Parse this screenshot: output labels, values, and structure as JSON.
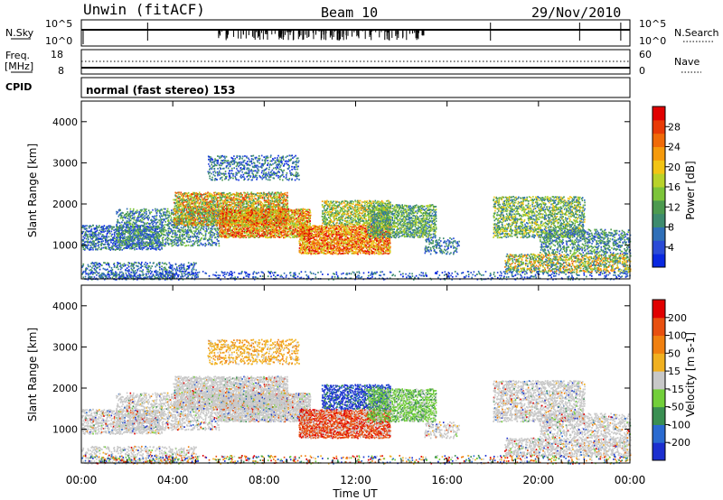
{
  "header": {
    "station": "Unwin (fitACF)",
    "beam": "Beam 10",
    "date": "29/Nov/2010"
  },
  "strip_nsky": {
    "left_label": "N.Sky",
    "left_ticks": [
      "10^5",
      "10^0"
    ],
    "right_label": "N.Search",
    "right_ticks": [
      "10^5",
      "10^0"
    ]
  },
  "strip_freq": {
    "left_label_1": "Freq.",
    "left_label_2": "[MHz]",
    "left_ticks": [
      "18",
      "8"
    ],
    "right_label": "Nave",
    "right_ticks": [
      "60",
      "0"
    ]
  },
  "strip_cpid": {
    "left_label": "CPID",
    "mode_text": "normal (fast stereo) 153"
  },
  "chart_data": [
    {
      "type": "heatmap",
      "panel": "power",
      "ylabel": "Slant Range [km]",
      "yticks": [
        "4000",
        "3000",
        "2000",
        "1000"
      ],
      "ylim": [
        180,
        4500
      ],
      "xlim_hours": [
        0,
        24
      ],
      "colorbar": {
        "label": "Power [dB]",
        "ticks": [
          "28",
          "24",
          "20",
          "16",
          "12",
          "8",
          "4"
        ],
        "colors": [
          "#0a28e0",
          "#2b4bd6",
          "#2f6fb8",
          "#3d8b6e",
          "#4c9a4f",
          "#7cc43a",
          "#b8d22a",
          "#f2c414",
          "#f59a0c",
          "#f06a08",
          "#e83a06",
          "#e00000"
        ]
      }
    },
    {
      "type": "heatmap",
      "panel": "velocity",
      "ylabel": "Slant Range [km]",
      "yticks": [
        "4000",
        "3000",
        "2000",
        "1000"
      ],
      "ylim": [
        180,
        4500
      ],
      "xlim_hours": [
        0,
        24
      ],
      "xlabel": "Time UT",
      "xticks": [
        "00:00",
        "04:00",
        "08:00",
        "12:00",
        "16:00",
        "20:00",
        "00:00"
      ],
      "colorbar": {
        "label": "Velocity [m s-1]",
        "ticks": [
          "200",
          "100",
          "50",
          "15",
          "-15",
          "-50",
          "-100",
          "-200"
        ],
        "colors": [
          "#1c2fcf",
          "#2a6ad0",
          "#3a8f52",
          "#72cf3a",
          "#c8c8c8",
          "#f0b020",
          "#f08010",
          "#e85010",
          "#e00000"
        ]
      }
    }
  ]
}
